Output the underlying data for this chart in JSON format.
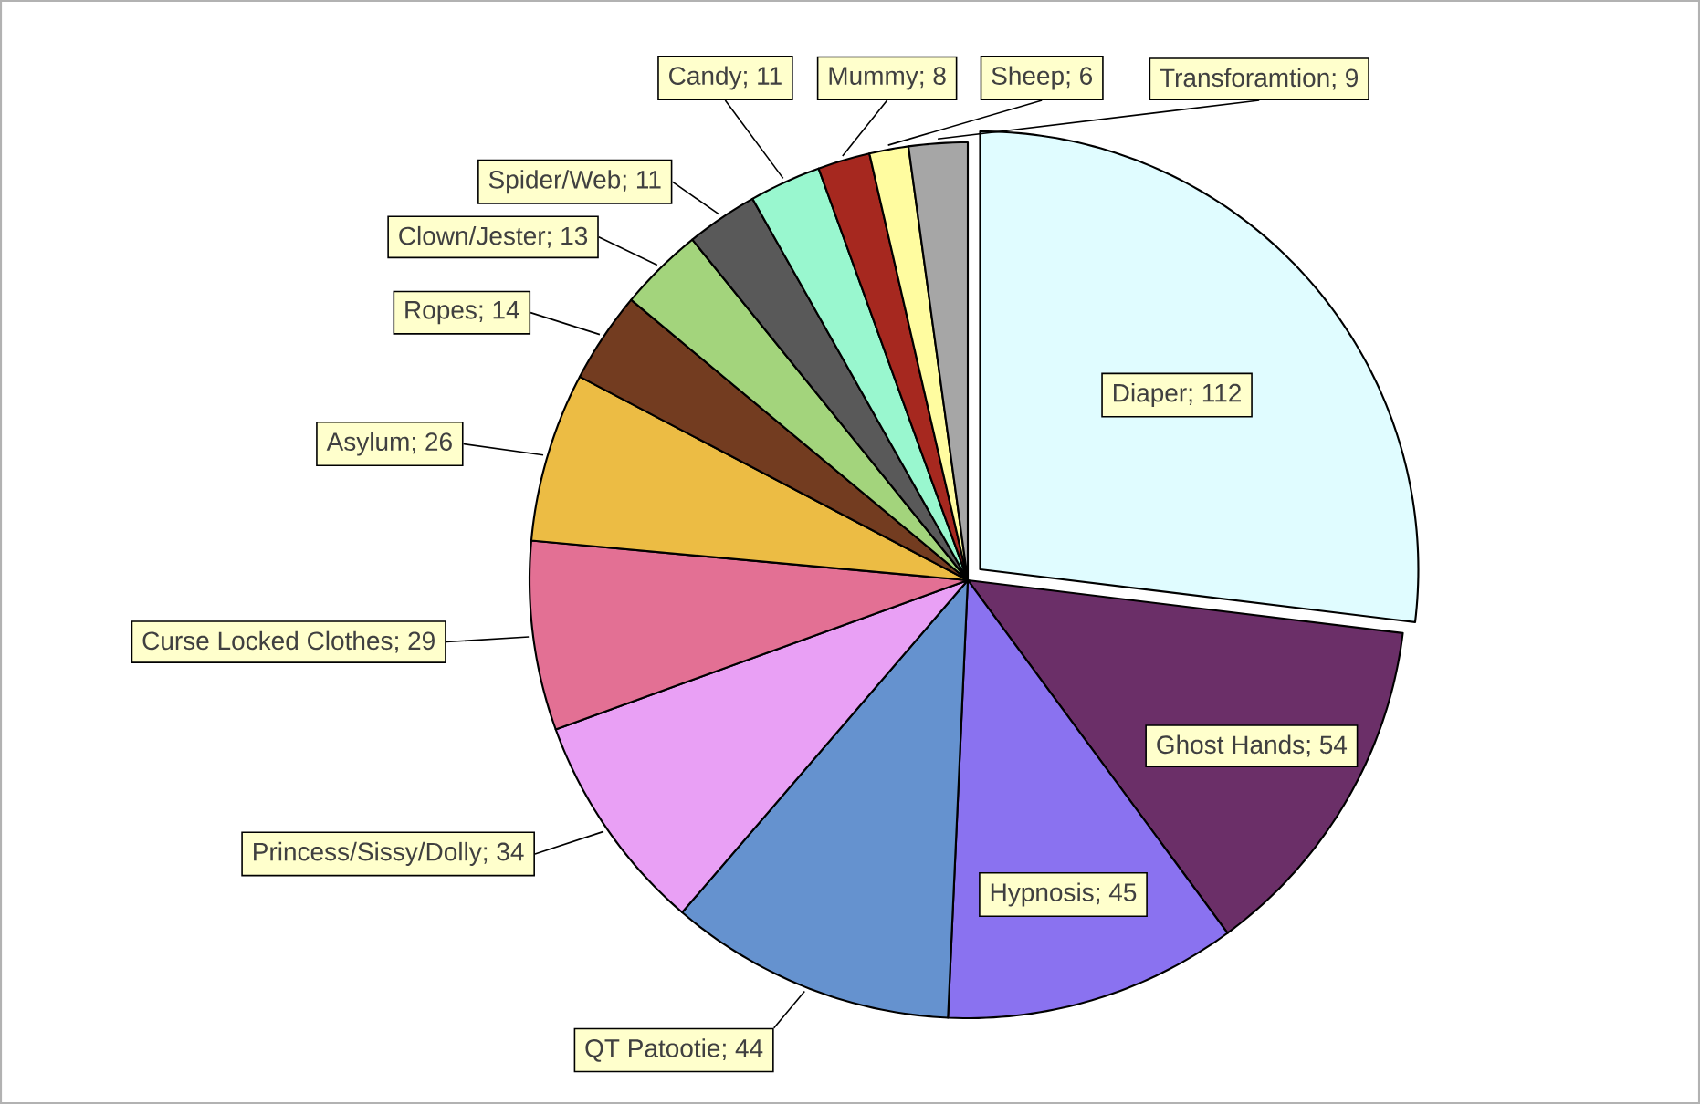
{
  "chart_data": {
    "type": "pie",
    "categories": [
      "Diaper",
      "Ghost Hands",
      "Hypnosis",
      "QT Patootie",
      "Princess/Sissy/Dolly",
      "Curse Locked Clothes",
      "Asylum",
      "Ropes",
      "Clown/Jester",
      "Spider/Web",
      "Candy",
      "Mummy",
      "Sheep",
      "Transforamtion"
    ],
    "values": [
      112,
      54,
      45,
      44,
      34,
      29,
      26,
      14,
      13,
      11,
      11,
      8,
      6,
      9
    ],
    "value_labels": [
      "; 112",
      "; 54",
      "; 45",
      "; 44",
      "; 34",
      "; 29",
      "; 26",
      "; 14",
      "; 13",
      "; 11",
      "; 11",
      "; 8",
      "; 6",
      "; 9"
    ],
    "colors": [
      "#e0fcff",
      "#6b2f68",
      "#8a72f0",
      "#6592cf",
      "#e9a0f5",
      "#e37094",
      "#ecbc44",
      "#733c20",
      "#a3d47c",
      "#595959",
      "#99f7cf",
      "#a6281f",
      "#fffca0",
      "#a6a6a6"
    ]
  }
}
